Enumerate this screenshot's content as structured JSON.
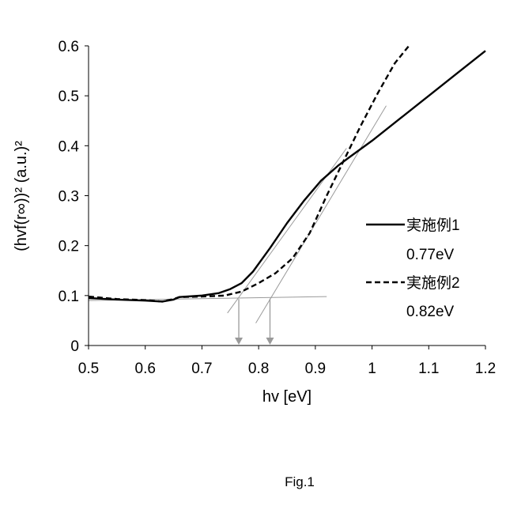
{
  "chart_data": {
    "type": "line",
    "xlabel": "hv [eV]",
    "ylabel": "(hvf(r∞))² (a.u.)²",
    "xlim": [
      0.5,
      1.2
    ],
    "ylim": [
      0,
      0.6
    ],
    "x_ticks": [
      "0.5",
      "0.6",
      "0.7",
      "0.8",
      "0.9",
      "1",
      "1.1",
      "1.2"
    ],
    "y_ticks": [
      "0",
      "0.1",
      "0.2",
      "0.3",
      "0.4",
      "0.5",
      "0.6"
    ],
    "grid": false,
    "legend_position": "right",
    "series": [
      {
        "name": "実施例1",
        "value_label": "0.77eV",
        "line_style": "solid",
        "color": "#000000",
        "x": [
          0.5,
          0.55,
          0.6,
          0.63,
          0.65,
          0.66,
          0.7,
          0.73,
          0.75,
          0.77,
          0.79,
          0.82,
          0.85,
          0.88,
          0.91,
          0.94,
          0.96,
          1.0,
          1.05,
          1.1,
          1.15,
          1.2
        ],
        "y": [
          0.095,
          0.092,
          0.09,
          0.088,
          0.092,
          0.097,
          0.1,
          0.105,
          0.113,
          0.125,
          0.148,
          0.195,
          0.245,
          0.29,
          0.33,
          0.36,
          0.377,
          0.41,
          0.455,
          0.5,
          0.545,
          0.59
        ]
      },
      {
        "name": "実施例2",
        "value_label": "0.82eV",
        "line_style": "dashed",
        "color": "#000000",
        "x": [
          0.5,
          0.55,
          0.6,
          0.63,
          0.65,
          0.66,
          0.7,
          0.74,
          0.77,
          0.8,
          0.83,
          0.86,
          0.89,
          0.92,
          0.95,
          0.98,
          1.01,
          1.04,
          1.065
        ],
        "y": [
          0.098,
          0.093,
          0.091,
          0.088,
          0.093,
          0.097,
          0.098,
          0.1,
          0.108,
          0.125,
          0.145,
          0.175,
          0.225,
          0.3,
          0.37,
          0.44,
          0.505,
          0.565,
          0.6
        ]
      }
    ],
    "baseline": {
      "x": [
        0.5,
        0.92
      ],
      "y": [
        0.09,
        0.098
      ],
      "color": "#9a9a9a"
    },
    "tangents": [
      {
        "series": "実施例1",
        "x": [
          0.745,
          0.955
        ],
        "y": [
          0.065,
          0.395
        ],
        "color": "#9a9a9a"
      },
      {
        "series": "実施例2",
        "x": [
          0.795,
          1.025
        ],
        "y": [
          0.045,
          0.48
        ],
        "color": "#9a9a9a"
      }
    ],
    "markers": [
      {
        "x": 0.765,
        "y_from": 0.093,
        "y_to": 0,
        "color": "#9a9a9a"
      },
      {
        "x": 0.82,
        "y_from": 0.094,
        "y_to": 0,
        "color": "#9a9a9a"
      }
    ]
  },
  "caption": "Fig.1"
}
